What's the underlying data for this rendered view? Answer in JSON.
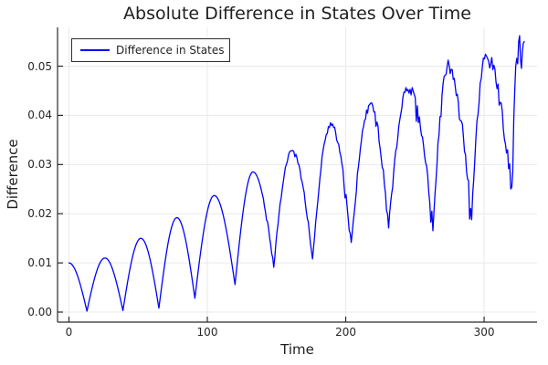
{
  "colors": {
    "line": "#0000ff",
    "grid": "#e9e9e9",
    "axis": "#2a2a2a",
    "text": "#1f1f1f",
    "tick_text": "#262626",
    "background": "#ffffff",
    "legend_border": "#2e2e2e"
  },
  "chart_data": {
    "type": "line",
    "title": "Absolute Difference in States Over Time",
    "xlabel": "Time",
    "ylabel": "Difference",
    "xlim": [
      -8.25,
      338.25
    ],
    "ylim": [
      -0.00204,
      0.05789
    ],
    "xticks": [
      0,
      100,
      200,
      300
    ],
    "xtick_labels": [
      "0",
      "100",
      "200",
      "300"
    ],
    "yticks": [
      0.0,
      0.01,
      0.02,
      0.03,
      0.04,
      0.05
    ],
    "ytick_labels": [
      "0.00",
      "0.01",
      "0.02",
      "0.03",
      "0.04",
      "0.05"
    ],
    "grid": true,
    "legend_position": "top-left",
    "series": [
      {
        "name": "Difference in States",
        "color": "#0000ff",
        "line_width": 1.3,
        "interpolation": "abs-cosine-between-extrema",
        "sample_step": 0.75,
        "keypoints": [
          [
            0,
            0.01
          ],
          [
            13,
            0.0002
          ],
          [
            26,
            0.011
          ],
          [
            39,
            0.0003
          ],
          [
            52,
            0.015
          ],
          [
            65,
            0.0008
          ],
          [
            78,
            0.0192
          ],
          [
            91,
            0.0028
          ],
          [
            105,
            0.0237
          ],
          [
            120,
            0.0056
          ],
          [
            133,
            0.0285
          ],
          [
            148,
            0.0094
          ],
          [
            161,
            0.0327
          ],
          [
            176,
            0.011
          ],
          [
            189,
            0.038
          ],
          [
            204,
            0.0142
          ],
          [
            218,
            0.0421
          ],
          [
            231,
            0.017
          ],
          [
            245,
            0.0455
          ],
          [
            263,
            0.0178
          ],
          [
            274,
            0.05
          ],
          [
            291,
            0.0188
          ],
          [
            301,
            0.0521
          ],
          [
            320,
            0.0251
          ],
          [
            325,
            0.0557
          ],
          [
            327,
            0.0478
          ],
          [
            329,
            0.055
          ]
        ],
        "noise": {
          "start_t": 140,
          "base_amp": 0.00035,
          "amp_growth_per_t": 8.5e-06,
          "spike_probability": 0.07,
          "seed": 1234567
        }
      }
    ]
  }
}
